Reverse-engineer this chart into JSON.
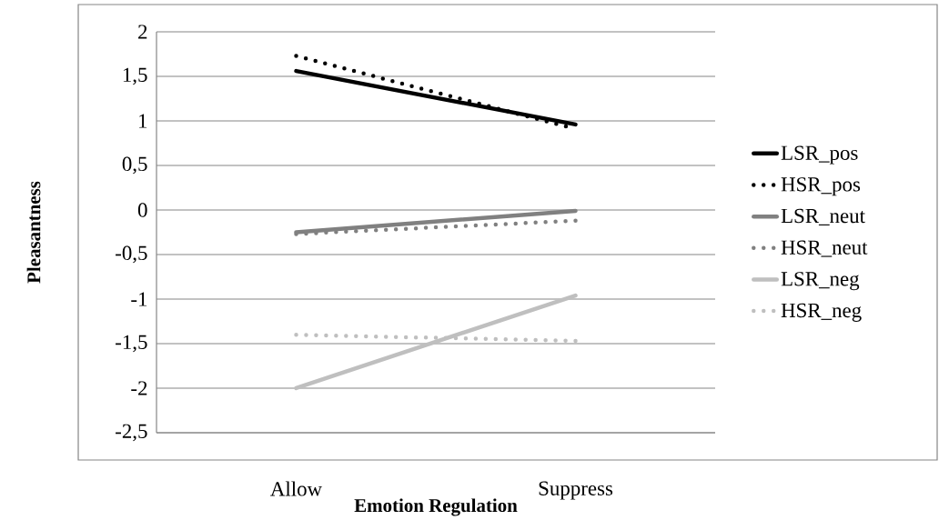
{
  "chart_data": {
    "type": "line",
    "xlabel": "Emotion Regulation",
    "ylabel": "Pleasantness",
    "categories": [
      "Allow",
      "Suppress"
    ],
    "series": [
      {
        "name": "LSR_pos",
        "color": "#000000",
        "line_style": "solid",
        "values": [
          1.56,
          0.96
        ]
      },
      {
        "name": "HSR_pos",
        "color": "#000000",
        "line_style": "dotted",
        "values": [
          1.73,
          0.91
        ]
      },
      {
        "name": "LSR_neut",
        "color": "#808080",
        "line_style": "solid",
        "values": [
          -0.25,
          -0.01
        ]
      },
      {
        "name": "HSR_neut",
        "color": "#808080",
        "line_style": "dotted",
        "values": [
          -0.27,
          -0.12
        ]
      },
      {
        "name": "LSR_neg",
        "color": "#bfbfbf",
        "line_style": "solid",
        "values": [
          -2.0,
          -0.96
        ]
      },
      {
        "name": "HSR_neg",
        "color": "#bfbfbf",
        "line_style": "dotted",
        "values": [
          -1.4,
          -1.47
        ]
      }
    ],
    "ylim": [
      -2.5,
      2
    ],
    "yticks": [
      {
        "value": -2.5,
        "label": "-2,5"
      },
      -2,
      {
        "value": -1.5,
        "label": "-1,5"
      },
      -1,
      {
        "value": -0.5,
        "label": "-0,5"
      },
      0,
      {
        "value": 0.5,
        "label": "0,5"
      },
      1,
      {
        "value": 1.5,
        "label": "1,5"
      },
      2
    ],
    "grid": "y",
    "legend": "right",
    "marker": "none"
  }
}
